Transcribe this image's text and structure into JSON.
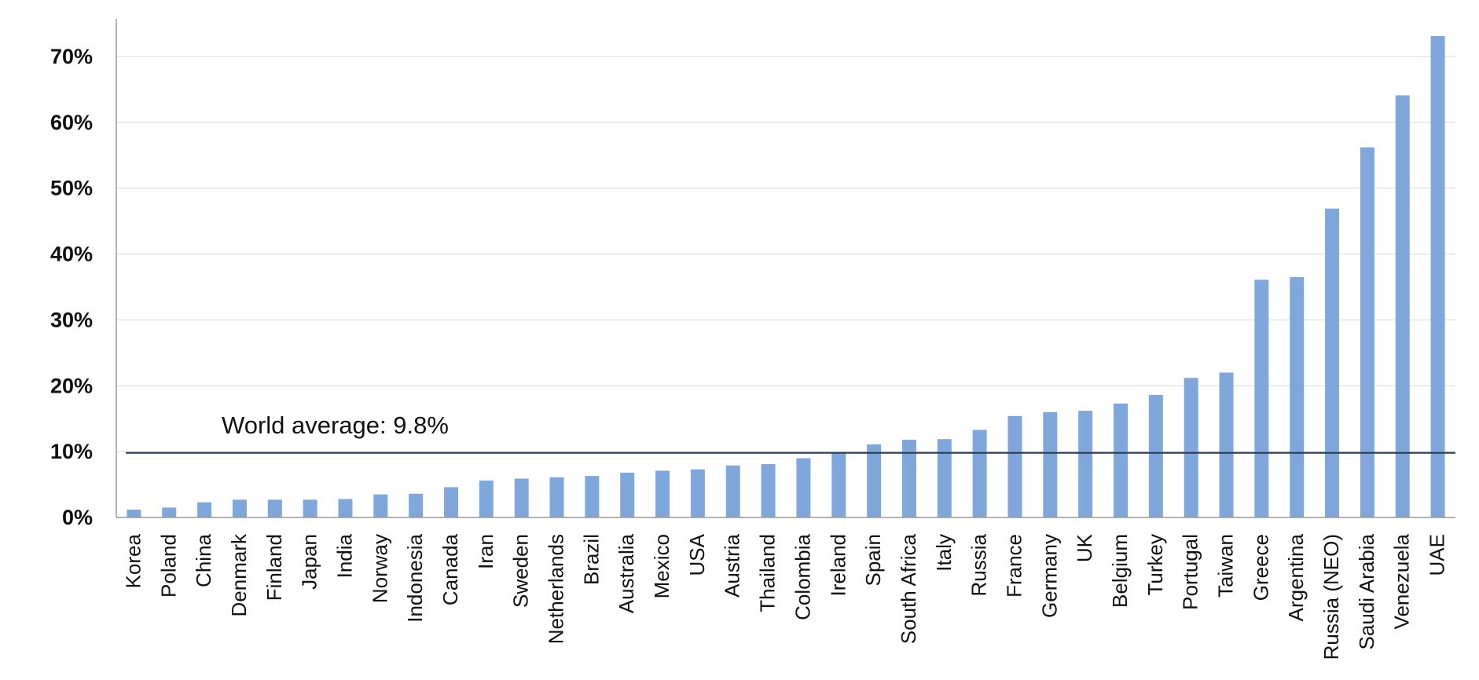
{
  "chart_data": {
    "type": "bar",
    "categories": [
      "Korea",
      "Poland",
      "China",
      "Denmark",
      "Finland",
      "Japan",
      "India",
      "Norway",
      "Indonesia",
      "Canada",
      "Iran",
      "Sweden",
      "Netherlands",
      "Brazil",
      "Australia",
      "Mexico",
      "USA",
      "Austria",
      "Thailand",
      "Colombia",
      "Ireland",
      "Spain",
      "South Africa",
      "Italy",
      "Russia",
      "France",
      "Germany",
      "UK",
      "Belgium",
      "Turkey",
      "Portugal",
      "Taiwan",
      "Greece",
      "Argentina",
      "Russia (NEO)",
      "Saudi Arabia",
      "Venezuela",
      "UAE"
    ],
    "values": [
      1.2,
      1.5,
      2.3,
      2.7,
      2.7,
      2.7,
      2.8,
      3.5,
      3.6,
      4.6,
      5.6,
      5.9,
      6.1,
      6.3,
      6.8,
      7.1,
      7.3,
      7.9,
      8.1,
      9.0,
      9.9,
      11.1,
      11.8,
      11.9,
      13.3,
      15.4,
      16.0,
      16.2,
      17.3,
      18.6,
      21.2,
      22.0,
      36.1,
      36.5,
      46.9,
      56.2,
      64.1,
      73.1
    ],
    "title": "",
    "xlabel": "",
    "ylabel": "",
    "ylim": [
      0,
      75
    ],
    "yticks": [
      0,
      10,
      20,
      30,
      40,
      50,
      60,
      70
    ],
    "ytick_labels": [
      "0%",
      "10%",
      "20%",
      "30%",
      "40%",
      "50%",
      "60%",
      "70%"
    ],
    "grid": true,
    "bar_color": "#7fa7dc",
    "reference_line": {
      "value": 9.8,
      "label": "World average: 9.8%",
      "color": "#24374f"
    }
  }
}
